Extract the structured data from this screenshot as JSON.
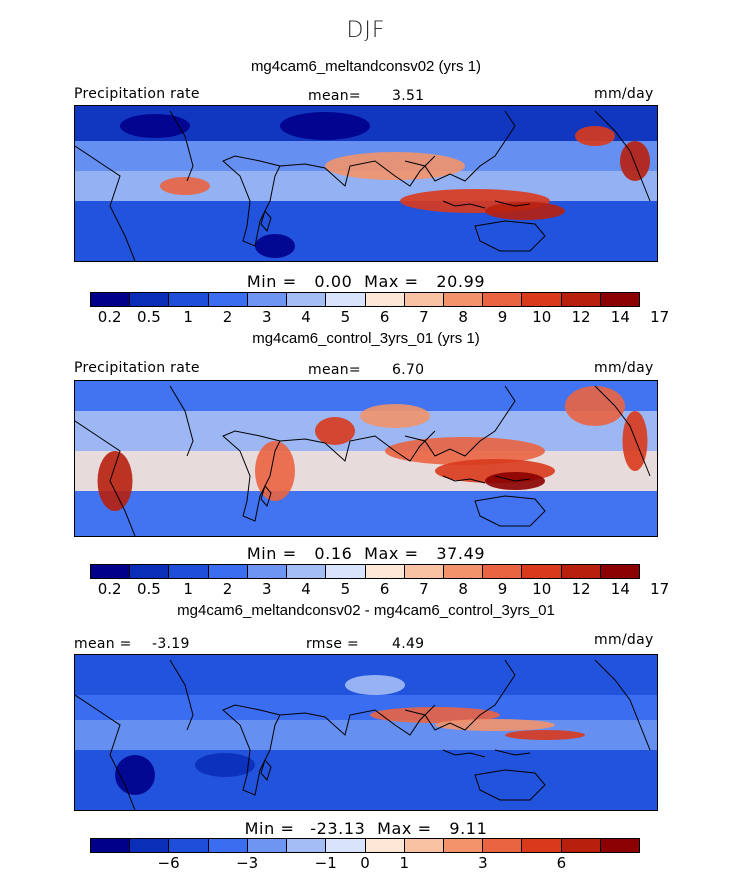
{
  "season": "DJF",
  "colors": [
    "#00008b",
    "#0a2eb8",
    "#1f4fd8",
    "#3b6df0",
    "#6f95f2",
    "#a4bdf5",
    "#d7e4fb",
    "#fde8d8",
    "#f9c2a2",
    "#f2936c",
    "#ea6441",
    "#d93a1c",
    "#b8200e",
    "#8b0000"
  ],
  "chart_data": [
    {
      "type": "heatmap",
      "title": "mg4cam6_meltandconsv02 (yrs 1)",
      "left_label": "Precipitation rate",
      "mean_label": "mean=",
      "mean_value": "3.51",
      "units": "mm/day",
      "min_label": "Min =",
      "min_value": "0.00",
      "max_label": "Max =",
      "max_value": "20.99",
      "levels": [
        "0.2",
        "0.5",
        "1",
        "2",
        "3",
        "4",
        "5",
        "6",
        "7",
        "8",
        "9",
        "10",
        "12",
        "14",
        "17"
      ],
      "colorbar_ticks": [
        "0.2",
        "0.5",
        "1",
        "2",
        "3",
        "4",
        "5",
        "6",
        "7",
        "8",
        "9",
        "10",
        "12",
        "14",
        "17"
      ]
    },
    {
      "type": "heatmap",
      "title": "mg4cam6_control_3yrs_01 (yrs 1)",
      "left_label": "Precipitation rate",
      "mean_label": "mean=",
      "mean_value": "6.70",
      "units": "mm/day",
      "min_label": "Min =",
      "min_value": "0.16",
      "max_label": "Max =",
      "max_value": "37.49",
      "levels": [
        "0.2",
        "0.5",
        "1",
        "2",
        "3",
        "4",
        "5",
        "6",
        "7",
        "8",
        "9",
        "10",
        "12",
        "14",
        "17"
      ],
      "colorbar_ticks": [
        "0.2",
        "0.5",
        "1",
        "2",
        "3",
        "4",
        "5",
        "6",
        "7",
        "8",
        "9",
        "10",
        "12",
        "14",
        "17"
      ]
    },
    {
      "type": "heatmap",
      "title": "mg4cam6_meltandconsv02 - mg4cam6_control_3yrs_01",
      "mean_label": "mean =",
      "mean_value": "-3.19",
      "rmse_label": "rmse =",
      "rmse_value": "4.49",
      "units": "mm/day",
      "min_label": "Min =",
      "min_value": "-23.13",
      "max_label": "Max =",
      "max_value": "9.11",
      "colorbar_ticks": [
        "-6",
        "-3",
        "-1",
        "0",
        "1",
        "3",
        "6"
      ]
    }
  ]
}
